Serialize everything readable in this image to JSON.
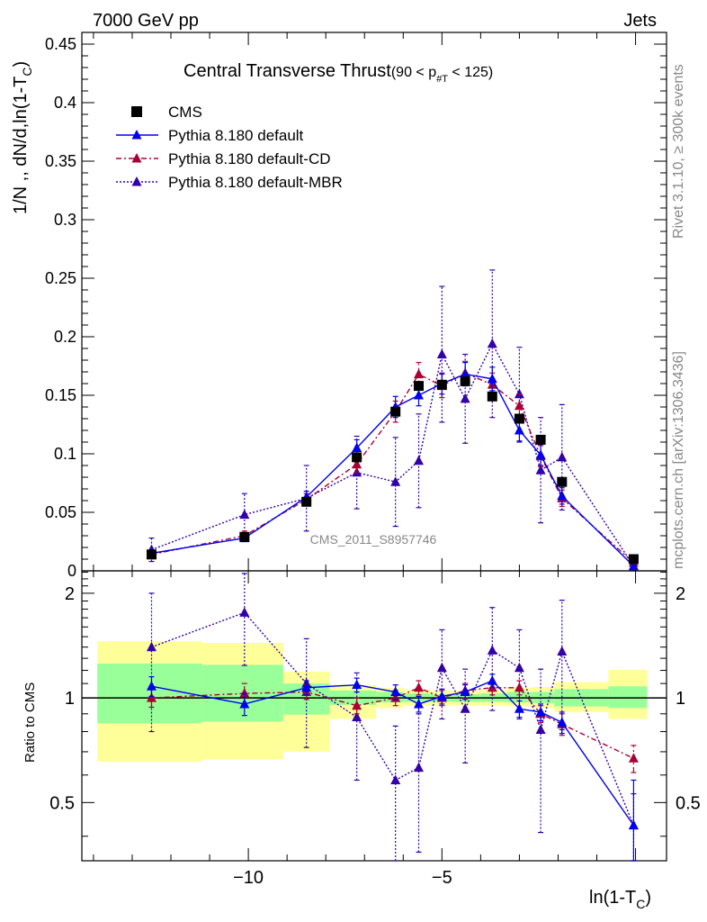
{
  "header": {
    "left": "7000 GeV pp",
    "right": "Jets"
  },
  "side": {
    "rivet": "Rivet 3.1.10, ≥ 300k events",
    "mcplots": "mcplots.cern.ch [arXiv:1306.3436]"
  },
  "watermark": "CMS_2011_S8957746",
  "chart_data": [
    {
      "type": "scatter",
      "title": "Central Transverse Thrust",
      "title_cut": "(90 < p",
      "title_cut_sub": "#T",
      "title_cut_end": " < 125)",
      "ylabel": "1/N ,, dN/d,ln(1-T",
      "ylabel_sub": "C",
      "ylabel_end": ")",
      "xlim": [
        -14.3,
        0.8
      ],
      "ylim": [
        0,
        0.46
      ],
      "yticks": [
        0,
        0.05,
        0.1,
        0.15,
        0.2,
        0.25,
        0.3,
        0.35,
        0.4,
        0.45
      ],
      "ytick_labels": [
        "0",
        "0.05",
        "0.1",
        "0.15",
        "0.2",
        "0.25",
        "0.3",
        "0.35",
        "0.4",
        "0.45"
      ],
      "legend": [
        {
          "key": "cms",
          "label": "CMS",
          "color": "#000000"
        },
        {
          "key": "def",
          "label": "Pythia 8.180 default",
          "color": "#0000ee"
        },
        {
          "key": "cd",
          "label": "Pythia 8.180 default-CD",
          "color": "#aa0033"
        },
        {
          "key": "mbr",
          "label": "Pythia 8.180 default-MBR",
          "color": "#3300aa"
        }
      ],
      "x": [
        -12.5,
        -10.1,
        -8.5,
        -7.2,
        -6.2,
        -5.6,
        -5.0,
        -4.4,
        -3.7,
        -3.0,
        -2.45,
        -1.9,
        -0.05
      ],
      "series": [
        {
          "name": "CMS",
          "values": [
            0.014,
            0.029,
            0.059,
            0.097,
            0.136,
            0.158,
            0.159,
            0.162,
            0.149,
            0.13,
            0.112,
            0.076,
            0.01
          ]
        },
        {
          "name": "Pythia 8.180 default",
          "values": [
            0.015,
            0.028,
            0.063,
            0.105,
            0.14,
            0.15,
            0.16,
            0.168,
            0.164,
            0.12,
            0.099,
            0.064,
            0.004
          ],
          "err": [
            0.003,
            0.003,
            0.005,
            0.007,
            0.009,
            0.009,
            0.009,
            0.01,
            0.01,
            0.01,
            0.009,
            0.007,
            0.002
          ]
        },
        {
          "name": "Pythia 8.180 default-CD",
          "values": [
            0.014,
            0.03,
            0.061,
            0.091,
            0.136,
            0.168,
            0.158,
            0.169,
            0.159,
            0.141,
            0.098,
            0.062,
            0.007
          ],
          "err": [
            0.003,
            0.004,
            0.005,
            0.007,
            0.009,
            0.01,
            0.01,
            0.01,
            0.01,
            0.01,
            0.009,
            0.007,
            0.002
          ]
        },
        {
          "name": "Pythia 8.180 default-MBR",
          "values": [
            0.018,
            0.048,
            0.062,
            0.084,
            0.076,
            0.094,
            0.185,
            0.147,
            0.194,
            0.151,
            0.086,
            0.097,
            0.004
          ],
          "err": [
            0.01,
            0.018,
            0.028,
            0.031,
            0.038,
            0.04,
            0.058,
            0.038,
            0.063,
            0.04,
            0.045,
            0.045,
            0.004
          ]
        }
      ]
    },
    {
      "type": "scatter",
      "ylabel": "Ratio to CMS",
      "xlabel": "ln(1-T",
      "xlabel_sub": "C",
      "xlabel_end": ")",
      "xlim": [
        -14.3,
        0.8
      ],
      "ylim": [
        0.34,
        2.32
      ],
      "yticks": [
        0.5,
        1,
        2
      ],
      "ytick_labels": [
        "0.5",
        "1",
        "2"
      ],
      "xticks": [
        -10,
        -5
      ],
      "xtick_labels": [
        "−10",
        "−5"
      ],
      "bands": {
        "edges": [
          -13.9,
          -11.2,
          -9.1,
          -7.9,
          -6.7,
          -6.0,
          -5.3,
          -4.7,
          -4.0,
          -3.3,
          -2.7,
          -2.1,
          -0.7,
          0.3
        ],
        "inner_lo": [
          0.845,
          0.855,
          0.895,
          0.955,
          0.97,
          0.975,
          0.975,
          0.975,
          0.975,
          0.97,
          0.965,
          0.945,
          0.935
        ],
        "inner_hi": [
          1.255,
          1.245,
          1.1,
          1.05,
          1.04,
          1.03,
          1.025,
          1.025,
          1.03,
          1.04,
          1.04,
          1.06,
          1.08
        ],
        "outer_lo": [
          0.655,
          0.665,
          0.7,
          0.87,
          0.935,
          0.95,
          0.95,
          0.95,
          0.95,
          0.945,
          0.935,
          0.91,
          0.87
        ],
        "outer_hi": [
          1.455,
          1.44,
          1.19,
          1.09,
          1.07,
          1.055,
          1.05,
          1.05,
          1.055,
          1.07,
          1.075,
          1.11,
          1.205
        ],
        "inner_color": "#99ff99",
        "outer_color": "#ffff99"
      },
      "x": [
        -12.5,
        -10.1,
        -8.5,
        -7.2,
        -6.2,
        -5.6,
        -5.0,
        -4.4,
        -3.7,
        -3.0,
        -2.45,
        -1.9,
        -0.05
      ],
      "series": [
        {
          "name": "Pythia 8.180 default",
          "values": [
            1.08,
            0.96,
            1.07,
            1.09,
            1.04,
            0.96,
            1.01,
            1.04,
            1.12,
            0.93,
            0.91,
            0.85,
            0.43
          ],
          "err": [
            0.07,
            0.07,
            0.05,
            0.05,
            0.05,
            0.05,
            0.05,
            0.05,
            0.05,
            0.05,
            0.05,
            0.06,
            0.15
          ]
        },
        {
          "name": "Pythia 8.180 default-CD",
          "values": [
            1.0,
            1.03,
            1.04,
            0.95,
            1.0,
            1.07,
            1.0,
            1.05,
            1.07,
            1.07,
            0.9,
            0.84,
            0.67
          ],
          "err": [
            0.06,
            0.07,
            0.05,
            0.05,
            0.05,
            0.05,
            0.05,
            0.05,
            0.05,
            0.05,
            0.05,
            0.06,
            0.06
          ]
        },
        {
          "name": "Pythia 8.180 default-MBR",
          "values": [
            1.4,
            1.76,
            1.1,
            0.88,
            0.58,
            0.63,
            1.22,
            0.93,
            1.37,
            1.22,
            0.81,
            1.36,
            0.43
          ],
          "err": [
            0.6,
            0.52,
            0.38,
            0.3,
            0.25,
            0.27,
            0.35,
            0.28,
            0.45,
            0.35,
            0.4,
            0.55,
            0.1
          ]
        }
      ]
    }
  ]
}
